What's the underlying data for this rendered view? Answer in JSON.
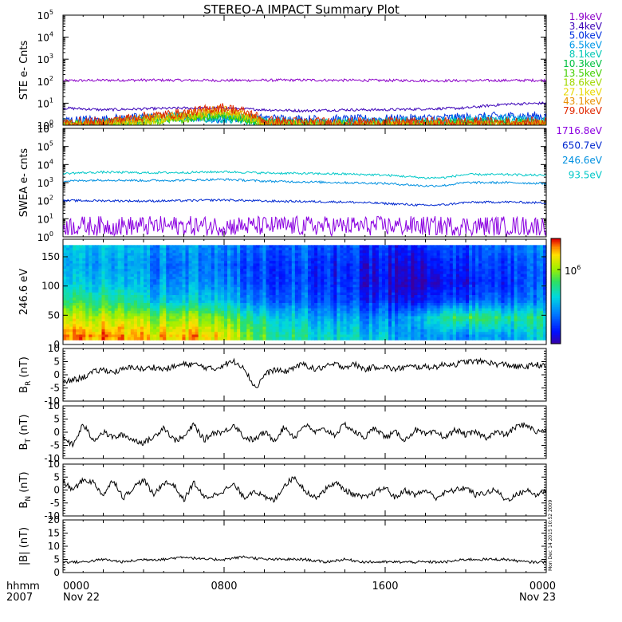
{
  "title": "STEREO-A IMPACT Summary Plot",
  "time_axis": {
    "corner_labels": [
      "hhmm",
      "2007"
    ],
    "ticks": [
      {
        "hour": 0,
        "label": "0000",
        "date": "Nov 22"
      },
      {
        "hour": 8,
        "label": "0800",
        "date": ""
      },
      {
        "hour": 16,
        "label": "1600",
        "date": ""
      },
      {
        "hour": 24,
        "label": "0000",
        "date": "Nov 23"
      }
    ]
  },
  "side_stamp": "Mon Dec 14 2015 10:52 2009",
  "colors": {
    "axis": "#000000",
    "trace": "#000000"
  },
  "chart_data": [
    {
      "type": "line",
      "panel": "ste",
      "ylabel": "STE e- Cnts",
      "yscale": "log",
      "ylim": [
        1,
        100000
      ],
      "y_ticks": [
        {
          "value": 1,
          "base": "10",
          "exp": "0"
        },
        {
          "value": 10,
          "base": "10",
          "exp": "1"
        },
        {
          "value": 100,
          "base": "10",
          "exp": "2"
        },
        {
          "value": 1000,
          "base": "10",
          "exp": "3"
        },
        {
          "value": 10000,
          "base": "10",
          "exp": "4"
        },
        {
          "value": 100000,
          "base": "10",
          "exp": "5"
        }
      ],
      "xlim": [
        0,
        24
      ],
      "series": [
        {
          "name": "1.9keV",
          "color": "#8b00c8",
          "x": [
            0,
            2,
            4,
            6,
            8,
            10,
            12,
            14,
            16,
            18,
            20,
            22,
            24
          ],
          "values": [
            105,
            110,
            112,
            110,
            108,
            110,
            112,
            110,
            108,
            106,
            105,
            108,
            110
          ]
        },
        {
          "name": "3.4keV",
          "color": "#3a00b8",
          "x": [
            0,
            2,
            4,
            6,
            8,
            10,
            12,
            14,
            16,
            18,
            20,
            22,
            24
          ],
          "values": [
            6,
            5,
            5.5,
            6,
            6,
            5,
            4.5,
            5,
            5,
            5.5,
            6,
            9,
            10
          ]
        },
        {
          "name": "5.0keV",
          "color": "#0030e0",
          "x": [
            0,
            2,
            4,
            6,
            8,
            10,
            12,
            14,
            16,
            18,
            20,
            22,
            24
          ],
          "values": [
            1.6,
            1.8,
            2.2,
            2.5,
            2.2,
            2.0,
            1.8,
            1.8,
            1.9,
            2.0,
            2.2,
            2.5,
            2.6
          ]
        },
        {
          "name": "6.5keV",
          "color": "#0098e8",
          "x": [
            0,
            2,
            4,
            6,
            8,
            10,
            12,
            14,
            16,
            18,
            20,
            22,
            24
          ],
          "values": [
            1.3,
            1.4,
            2.0,
            2.5,
            2.0,
            1.6,
            1.4,
            1.4,
            1.5,
            1.6,
            1.8,
            2.0,
            2.0
          ]
        },
        {
          "name": "8.1keV",
          "color": "#00c8b4",
          "x": [
            0,
            2,
            4,
            6,
            8,
            10,
            12,
            14,
            16,
            18,
            20,
            22,
            24
          ],
          "values": [
            1.15,
            1.2,
            1.8,
            2.5,
            2.0,
            1.3,
            1.2,
            1.2,
            1.3,
            1.3,
            1.4,
            1.5,
            1.5
          ]
        },
        {
          "name": "10.3keV",
          "color": "#00c040",
          "x": [
            0,
            2,
            4,
            6,
            8,
            10,
            12,
            14,
            16,
            18,
            20,
            22,
            24
          ],
          "values": [
            1.05,
            1.1,
            1.6,
            2.2,
            2.8,
            1.2,
            1.1,
            1.1,
            1.1,
            1.1,
            1.2,
            1.2,
            1.2
          ]
        },
        {
          "name": "13.5keV",
          "color": "#40d000",
          "x": [
            0,
            2,
            4,
            6,
            8,
            10,
            12,
            14,
            16,
            18,
            20,
            22,
            24
          ],
          "values": [
            1.0,
            1.05,
            1.5,
            2.0,
            3.0,
            1.2,
            1.05,
            1.05,
            1.05,
            1.05,
            1.1,
            1.1,
            1.1
          ]
        },
        {
          "name": "18.6keV",
          "color": "#a0d800",
          "x": [
            0,
            2,
            4,
            6,
            8,
            10,
            12,
            14,
            16,
            18,
            20,
            22,
            24
          ],
          "values": [
            1.0,
            1.0,
            1.4,
            2.0,
            3.5,
            1.1,
            1.0,
            1.0,
            1.0,
            1.0,
            1.05,
            1.05,
            1.05
          ]
        },
        {
          "name": "27.1keV",
          "color": "#e8d800",
          "x": [
            0,
            2,
            4,
            6,
            8,
            10,
            12,
            14,
            16,
            18,
            20,
            22,
            24
          ],
          "values": [
            1.0,
            1.0,
            1.5,
            2.5,
            4.5,
            1.1,
            1.0,
            1.0,
            1.0,
            1.0,
            1.0,
            1.0,
            1.0
          ]
        },
        {
          "name": "43.1keV",
          "color": "#e89000",
          "x": [
            0,
            2,
            4,
            6,
            8,
            10,
            12,
            14,
            16,
            18,
            20,
            22,
            24
          ],
          "values": [
            1.0,
            1.1,
            2.0,
            3.0,
            5.0,
            1.2,
            1.1,
            1.1,
            1.1,
            1.1,
            1.1,
            1.1,
            1.1
          ]
        },
        {
          "name": "79.0keV",
          "color": "#e02800",
          "x": [
            0,
            2,
            4,
            6,
            8,
            10,
            12,
            14,
            16,
            18,
            20,
            22,
            24
          ],
          "values": [
            1.3,
            1.4,
            2.5,
            3.5,
            6.5,
            1.6,
            1.4,
            1.4,
            1.4,
            1.4,
            1.4,
            1.4,
            1.4
          ]
        }
      ]
    },
    {
      "type": "line",
      "panel": "swea",
      "ylabel": "SWEA e- cnts",
      "yscale": "log",
      "ylim": [
        1,
        1000000
      ],
      "y_ticks": [
        {
          "value": 1,
          "base": "10",
          "exp": "0"
        },
        {
          "value": 10,
          "base": "10",
          "exp": "1"
        },
        {
          "value": 100,
          "base": "10",
          "exp": "2"
        },
        {
          "value": 1000,
          "base": "10",
          "exp": "3"
        },
        {
          "value": 10000,
          "base": "10",
          "exp": "4"
        },
        {
          "value": 100000,
          "base": "10",
          "exp": "5"
        },
        {
          "value": 1000000,
          "base": "10",
          "exp": "6"
        }
      ],
      "xlim": [
        0,
        24
      ],
      "series": [
        {
          "name": "1716.8eV",
          "color": "#8b00e0",
          "x": [
            0,
            4,
            8,
            12,
            16,
            20,
            24
          ],
          "values": [
            4,
            4,
            4,
            4,
            4,
            4,
            4
          ]
        },
        {
          "name": "650.7eV",
          "color": "#0028d0",
          "x": [
            0,
            2,
            4,
            6,
            8,
            10,
            12,
            14,
            16,
            18,
            19,
            20,
            22,
            24
          ],
          "values": [
            100,
            100,
            95,
            100,
            110,
            95,
            90,
            85,
            70,
            55,
            60,
            80,
            85,
            75
          ]
        },
        {
          "name": "246.6eV",
          "color": "#0090e0",
          "x": [
            0,
            2,
            4,
            6,
            8,
            10,
            12,
            14,
            16,
            18,
            19,
            20,
            22,
            24
          ],
          "values": [
            1200,
            1400,
            1300,
            1350,
            1500,
            1200,
            1100,
            1000,
            900,
            650,
            700,
            1000,
            1000,
            900
          ]
        },
        {
          "name": "93.5eV",
          "color": "#00c8c8",
          "x": [
            0,
            2,
            4,
            6,
            8,
            10,
            12,
            14,
            16,
            18,
            19,
            20,
            22,
            24
          ],
          "values": [
            3200,
            3800,
            3500,
            3600,
            4000,
            3400,
            3200,
            3000,
            2600,
            1800,
            1900,
            2800,
            2800,
            2500
          ]
        }
      ]
    },
    {
      "type": "heatmap",
      "panel": "pitch",
      "ylabel": "246.6 eV",
      "ylim": [
        0,
        180
      ],
      "y_ticks": [
        0,
        50,
        100,
        150
      ],
      "xlim": [
        0,
        24
      ],
      "colorbar_label": "10",
      "colorbar_exp": "6",
      "x": [
        0,
        2,
        4,
        6,
        8,
        10,
        12,
        14,
        16,
        18,
        20,
        22,
        24
      ],
      "y": [
        15,
        45,
        75,
        105,
        135,
        165
      ],
      "values": [
        [
          0.9,
          0.9,
          0.85,
          0.9,
          0.8,
          0.6,
          0.5,
          0.45,
          0.4,
          0.35,
          0.3,
          0.35,
          0.45
        ],
        [
          0.75,
          0.75,
          0.7,
          0.75,
          0.65,
          0.5,
          0.4,
          0.35,
          0.3,
          0.45,
          0.6,
          0.55,
          0.55
        ],
        [
          0.55,
          0.55,
          0.45,
          0.45,
          0.4,
          0.28,
          0.25,
          0.2,
          0.15,
          0.15,
          0.2,
          0.25,
          0.3
        ],
        [
          0.4,
          0.4,
          0.35,
          0.35,
          0.3,
          0.2,
          0.2,
          0.15,
          0.08,
          0.05,
          0.1,
          0.18,
          0.25
        ],
        [
          0.35,
          0.35,
          0.3,
          0.3,
          0.25,
          0.2,
          0.2,
          0.15,
          0.1,
          0.1,
          0.15,
          0.2,
          0.25
        ],
        [
          0.4,
          0.38,
          0.35,
          0.35,
          0.3,
          0.25,
          0.25,
          0.2,
          0.15,
          0.18,
          0.2,
          0.25,
          0.3
        ]
      ]
    },
    {
      "type": "line",
      "panel": "br",
      "ylabel": "B",
      "ylabel_sub": "R",
      "ylabel_unit": "(nT)",
      "ylim": [
        -10,
        10
      ],
      "y_ticks": [
        -10,
        -5,
        0,
        5,
        10
      ],
      "xlim": [
        0,
        24
      ],
      "series": [
        {
          "x": [
            0,
            0.5,
            1,
            1.5,
            2,
            2.5,
            3,
            3.5,
            4,
            4.5,
            5,
            5.5,
            6,
            6.5,
            7,
            7.5,
            8,
            8.5,
            9,
            9.3,
            9.6,
            10,
            10.5,
            11,
            11.5,
            12,
            12.5,
            13,
            13.5,
            14,
            14.5,
            15,
            15.5,
            16,
            16.5,
            17,
            17.5,
            18,
            18.5,
            19,
            19.5,
            20,
            20.5,
            21,
            21.5,
            22,
            22.5,
            23,
            23.5,
            24
          ],
          "values": [
            -3,
            -2,
            -1,
            1,
            2,
            1,
            2,
            3,
            2,
            3,
            2,
            3,
            4,
            4,
            3,
            2,
            4,
            5,
            3,
            -2,
            -5,
            0,
            2,
            1,
            3,
            4,
            2,
            3,
            4,
            3,
            4,
            2,
            3,
            3,
            2,
            3,
            3,
            3,
            3,
            4,
            4,
            5,
            5,
            5,
            4,
            4,
            3,
            3,
            4,
            3
          ]
        }
      ]
    },
    {
      "type": "line",
      "panel": "bt",
      "ylabel": "B",
      "ylabel_sub": "T",
      "ylabel_unit": "(nT)",
      "ylim": [
        -10,
        10
      ],
      "y_ticks": [
        -10,
        -5,
        0,
        5,
        10
      ],
      "xlim": [
        0,
        24
      ],
      "series": [
        {
          "x": [
            0,
            0.5,
            1,
            1.5,
            2,
            2.5,
            3,
            3.5,
            4,
            4.5,
            5,
            5.5,
            6,
            6.5,
            7,
            7.5,
            8,
            8.5,
            9,
            9.5,
            10,
            10.5,
            11,
            11.5,
            12,
            12.5,
            13,
            13.5,
            14,
            14.5,
            15,
            15.5,
            16,
            16.5,
            17,
            17.5,
            18,
            18.5,
            19,
            19.5,
            20,
            20.5,
            21,
            21.5,
            22,
            22.5,
            23,
            23.5,
            24
          ],
          "values": [
            -2,
            -5,
            3,
            -3,
            0,
            -2,
            -1,
            -3,
            -4,
            -2,
            2,
            -3,
            -2,
            3,
            -3,
            0,
            0,
            3,
            -2,
            -3,
            0,
            -3,
            2,
            -2,
            3,
            0,
            1,
            -1,
            3,
            0,
            -2,
            2,
            -2,
            0,
            -3,
            1,
            -1,
            0,
            -2,
            1,
            -1,
            0,
            -2,
            0,
            -1,
            2,
            3,
            0,
            1
          ]
        }
      ]
    },
    {
      "type": "line",
      "panel": "bn",
      "ylabel": "B",
      "ylabel_sub": "N",
      "ylabel_unit": "(nT)",
      "ylim": [
        -10,
        10
      ],
      "y_ticks": [
        -10,
        -5,
        0,
        5,
        10
      ],
      "xlim": [
        0,
        24
      ],
      "series": [
        {
          "x": [
            0,
            0.5,
            1,
            1.5,
            2,
            2.5,
            3,
            3.5,
            4,
            4.5,
            5,
            5.5,
            6,
            6.5,
            7,
            7.5,
            8,
            8.5,
            9,
            9.5,
            10,
            10.5,
            11,
            11.5,
            12,
            12.5,
            13,
            13.5,
            14,
            14.5,
            15,
            15.5,
            16,
            16.5,
            17,
            17.5,
            18,
            18.5,
            19,
            19.5,
            20,
            20.5,
            21,
            21.5,
            22,
            22.5,
            23,
            23.5,
            24
          ],
          "values": [
            3,
            0,
            4,
            3,
            -2,
            4,
            -3,
            1,
            4,
            -2,
            3,
            2,
            -4,
            3,
            -3,
            -2,
            0,
            2,
            -3,
            0,
            -3,
            -4,
            2,
            5,
            0,
            -3,
            0,
            3,
            0,
            -2,
            -3,
            -1,
            1,
            -3,
            0,
            -2,
            0,
            -3,
            -1,
            0,
            1,
            -2,
            -1,
            0,
            -4,
            -2,
            0,
            -2,
            0
          ]
        }
      ]
    },
    {
      "type": "line",
      "panel": "bmag",
      "ylabel": "|B|",
      "ylabel_unit": "(nT)",
      "ylim": [
        0,
        20
      ],
      "y_ticks": [
        0,
        5,
        10,
        15,
        20
      ],
      "xlim": [
        0,
        24
      ],
      "series": [
        {
          "x": [
            0,
            1,
            2,
            3,
            4,
            5,
            6,
            7,
            8,
            9,
            10,
            11,
            12,
            13,
            14,
            15,
            16,
            17,
            18,
            19,
            20,
            21,
            22,
            23,
            24
          ],
          "values": [
            4,
            4,
            5,
            4,
            5,
            5,
            6,
            5,
            5,
            6,
            5,
            5,
            5,
            4,
            5,
            4,
            4,
            4,
            4,
            4,
            5,
            5,
            5,
            4,
            4
          ]
        }
      ]
    }
  ]
}
